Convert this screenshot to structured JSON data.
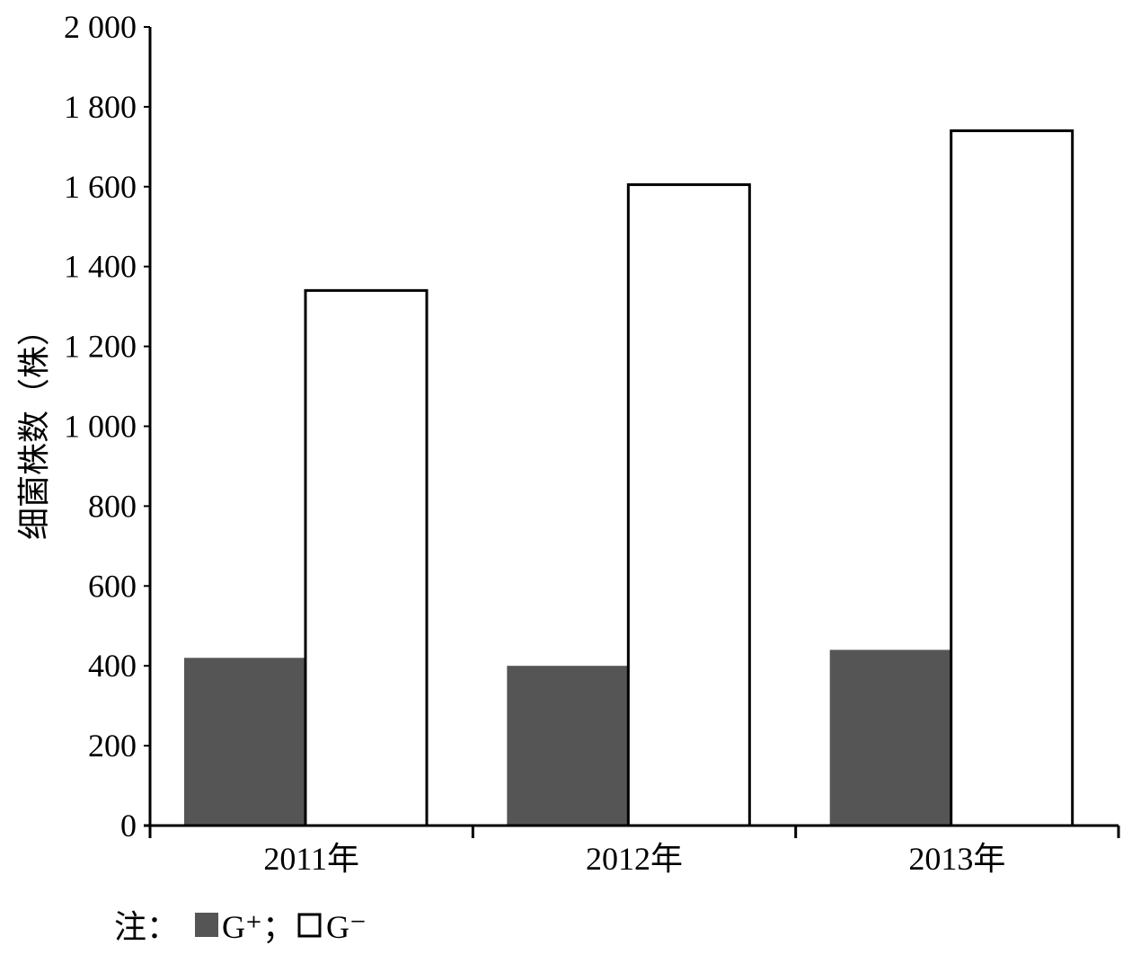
{
  "chart_data": {
    "type": "bar",
    "ylabel": "细菌株数（株）",
    "xlabel": "",
    "categories": [
      "2011年",
      "2012年",
      "2013年"
    ],
    "yticks": [
      "0",
      "200",
      "400",
      "600",
      "800",
      "1 000",
      "1 200",
      "1 400",
      "1 600",
      "1 800",
      "2 000"
    ],
    "ylim": [
      0,
      2000
    ],
    "grid": false,
    "series": [
      {
        "name": "G⁺",
        "values": [
          420,
          400,
          440
        ],
        "color": "#555555",
        "outline": false
      },
      {
        "name": "G⁻",
        "values": [
          1340,
          1605,
          1740
        ],
        "color": "#ffffff",
        "outline": true
      }
    ],
    "legend": {
      "prefix": "注：",
      "separator": "；"
    }
  }
}
